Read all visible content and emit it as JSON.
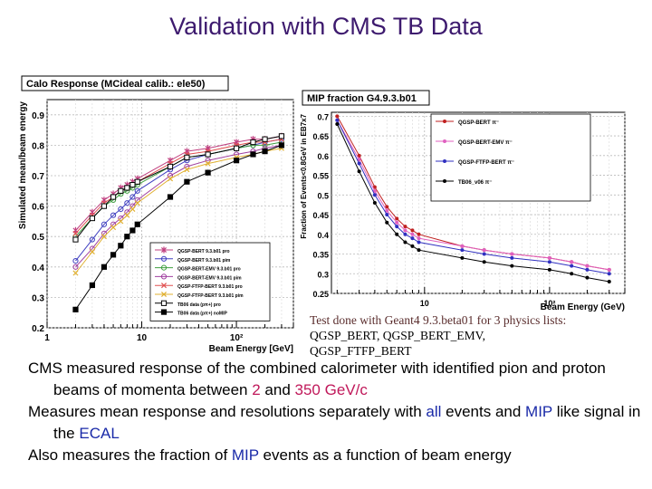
{
  "page": {
    "title": "Validation with CMS TB Data",
    "colors": {
      "title": "#3d1a6e",
      "red": "#c0185a",
      "blue": "#1a2aa8"
    }
  },
  "note": {
    "line1": "Test done with Geant4 9.3.beta01 for 3 physics lists:",
    "line2": "QGSP_BERT, QGSP_BERT_EMV,",
    "line3": "QGSP_FTFP_BERT"
  },
  "bullets": [
    {
      "parts": [
        {
          "t": "CMS measured response of the combined calorimeter with identified pion and proton beams of momenta between ",
          "c": ""
        },
        {
          "t": "2",
          "c": "red"
        },
        {
          "t": " and ",
          "c": ""
        },
        {
          "t": "350 GeV/c",
          "c": "red"
        }
      ]
    },
    {
      "parts": [
        {
          "t": "Measures mean response and resolutions separately with ",
          "c": ""
        },
        {
          "t": "all",
          "c": "blue"
        },
        {
          "t": " events and ",
          "c": ""
        },
        {
          "t": "MIP",
          "c": "blue"
        },
        {
          "t": " like signal in the ",
          "c": ""
        },
        {
          "t": "ECAL",
          "c": "blue"
        }
      ]
    },
    {
      "parts": [
        {
          "t": "Also measures the fraction of ",
          "c": ""
        },
        {
          "t": "MIP",
          "c": "blue"
        },
        {
          "t": " events as a function of beam energy",
          "c": ""
        }
      ]
    }
  ],
  "chart_data": [
    {
      "type": "scatter",
      "title": "Calo Response (MCideal calib.: ele50)",
      "xlabel": "Beam Energy [GeV]",
      "ylabel": "Simulated mean/beam energy",
      "xscale": "log",
      "xlim": [
        1,
        400
      ],
      "ylim": [
        0.2,
        0.95
      ],
      "xticks": [
        {
          "v": 1,
          "label": "1"
        },
        {
          "v": 10,
          "label": "10"
        },
        {
          "v": 100,
          "label": "10²"
        }
      ],
      "yticks": [
        0.2,
        0.3,
        0.4,
        0.5,
        0.6,
        0.7,
        0.8,
        0.9
      ],
      "grid": true,
      "legend_position": "bottom-right",
      "x": [
        2,
        3,
        4,
        5,
        6,
        7,
        8,
        9,
        20,
        30,
        50,
        100,
        150,
        200,
        300
      ],
      "series": [
        {
          "name": "QGSP-BERT 9.3.b01 pro",
          "color": "#c04080",
          "marker": "star",
          "values": [
            0.52,
            0.58,
            0.62,
            0.64,
            0.66,
            0.67,
            0.68,
            0.69,
            0.75,
            0.78,
            0.79,
            0.81,
            0.82,
            0.82,
            0.83
          ]
        },
        {
          "name": "QGSP-BERT 9.3.b01 pim",
          "color": "#4040c0",
          "marker": "circle",
          "values": [
            0.42,
            0.49,
            0.54,
            0.57,
            0.59,
            0.61,
            0.63,
            0.65,
            0.72,
            0.75,
            0.77,
            0.79,
            0.8,
            0.81,
            0.82
          ]
        },
        {
          "name": "QGSP-BERT-EMV 9.3.b01 pro",
          "color": "#40a040",
          "marker": "circle",
          "values": [
            0.5,
            0.56,
            0.6,
            0.62,
            0.64,
            0.65,
            0.66,
            0.67,
            0.73,
            0.76,
            0.77,
            0.79,
            0.8,
            0.8,
            0.81
          ]
        },
        {
          "name": "QGSP-BERT-EMV 9.3.b01 pim",
          "color": "#a040a0",
          "marker": "circle",
          "values": [
            0.4,
            0.46,
            0.51,
            0.54,
            0.56,
            0.58,
            0.6,
            0.62,
            0.7,
            0.73,
            0.75,
            0.77,
            0.78,
            0.79,
            0.8
          ]
        },
        {
          "name": "QGSP-FTFP-BERT 9.3.b01 pro",
          "color": "#e05050",
          "marker": "cross",
          "values": [
            0.51,
            0.57,
            0.61,
            0.63,
            0.65,
            0.66,
            0.67,
            0.68,
            0.74,
            0.77,
            0.78,
            0.8,
            0.81,
            0.81,
            0.82
          ]
        },
        {
          "name": "QGSP-FTFP-BERT 9.3.b01 pim",
          "color": "#e0b030",
          "marker": "cross",
          "values": [
            0.38,
            0.45,
            0.5,
            0.53,
            0.55,
            0.57,
            0.59,
            0.61,
            0.69,
            0.72,
            0.74,
            0.76,
            0.77,
            0.78,
            0.79
          ]
        },
        {
          "name": "TB06 data (pπ+) pro",
          "color": "#000000",
          "marker": "square",
          "values": [
            0.49,
            0.56,
            0.6,
            0.63,
            0.65,
            0.66,
            0.67,
            0.68,
            0.73,
            0.76,
            0.77,
            0.79,
            0.81,
            0.82,
            0.83
          ]
        },
        {
          "name": "TB06 data (pπ+) noMIP",
          "color": "#000000",
          "marker": "square-filled",
          "values": [
            0.26,
            0.34,
            0.4,
            0.44,
            0.47,
            0.5,
            0.52,
            0.54,
            0.63,
            0.68,
            0.71,
            0.75,
            0.77,
            0.78,
            0.8
          ]
        }
      ]
    },
    {
      "type": "line",
      "title": "MIP fraction G4.9.3.b01",
      "xlabel": "Beam Energy (GeV)",
      "ylabel": "Fraction of Events<0.8GeV in EB7x7",
      "xscale": "log",
      "xlim": [
        1.8,
        400
      ],
      "ylim": [
        0.25,
        0.71
      ],
      "xticks": [
        {
          "v": 10,
          "label": "10"
        },
        {
          "v": 100,
          "label": "10²"
        }
      ],
      "yticks": [
        0.25,
        0.3,
        0.35,
        0.4,
        0.45,
        0.5,
        0.55,
        0.6,
        0.65,
        0.7
      ],
      "grid": true,
      "legend_position": "top-right",
      "x": [
        2,
        3,
        4,
        5,
        6,
        7,
        8,
        9,
        20,
        30,
        50,
        100,
        150,
        200,
        300
      ],
      "series": [
        {
          "name": "QGSP-BERT π⁻",
          "color": "#c02020",
          "marker": "dot",
          "values": [
            0.7,
            0.6,
            0.52,
            0.47,
            0.44,
            0.42,
            0.41,
            0.4,
            0.37,
            0.36,
            0.35,
            0.34,
            0.33,
            0.32,
            0.31
          ]
        },
        {
          "name": "QGSP-BERT-EMV π⁻",
          "color": "#e060c0",
          "marker": "dot",
          "values": [
            0.69,
            0.59,
            0.51,
            0.46,
            0.43,
            0.41,
            0.4,
            0.39,
            0.37,
            0.36,
            0.35,
            0.34,
            0.33,
            0.32,
            0.31
          ]
        },
        {
          "name": "QGSP-FTFP-BERT π⁻",
          "color": "#3030c0",
          "marker": "dot",
          "values": [
            0.69,
            0.58,
            0.5,
            0.45,
            0.42,
            0.4,
            0.39,
            0.38,
            0.36,
            0.35,
            0.34,
            0.33,
            0.32,
            0.31,
            0.3
          ]
        },
        {
          "name": "TB06_v06 π⁻",
          "color": "#000000",
          "marker": "dot",
          "values": [
            0.68,
            0.56,
            0.48,
            0.43,
            0.4,
            0.38,
            0.37,
            0.36,
            0.34,
            0.33,
            0.32,
            0.31,
            0.3,
            0.29,
            0.28
          ]
        }
      ]
    }
  ]
}
